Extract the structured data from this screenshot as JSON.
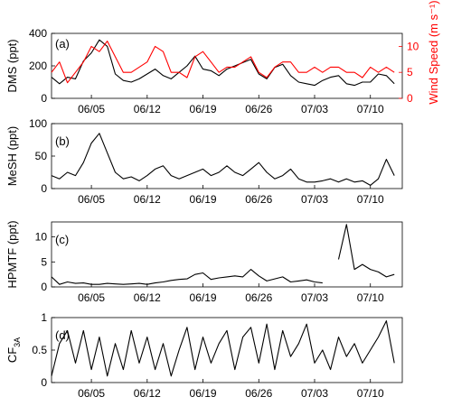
{
  "figure": {
    "x_tick_labels": [
      "06/05",
      "06/12",
      "06/19",
      "06/26",
      "07/03",
      "07/10"
    ]
  },
  "chart_data": [
    {
      "type": "line",
      "panel_label": "(a)",
      "ylabel": "DMS (ppt)",
      "ylabel_right": "Wind Speed (m s⁻¹)",
      "ylim": [
        0,
        400
      ],
      "yticks": [
        0,
        200,
        400
      ],
      "ylim_right": [
        0,
        12.5
      ],
      "yticks_right": [
        0,
        5,
        10
      ],
      "x_ticks": [
        "06/05",
        "06/12",
        "06/19",
        "06/26",
        "07/03",
        "07/10"
      ],
      "x_range_days": [
        "05/31",
        "07/15"
      ],
      "colors": {
        "DMS": "#000000",
        "Wind Speed": "#ff0000"
      },
      "series": [
        {
          "name": "DMS",
          "axis": "left",
          "x_days": [
            0,
            1,
            2,
            3,
            4,
            5,
            6,
            7,
            8,
            9,
            10,
            11,
            12,
            13,
            14,
            15,
            16,
            17,
            18,
            19,
            20,
            21,
            22,
            23,
            24,
            25,
            26,
            27,
            28,
            29,
            30,
            31,
            32,
            33,
            34,
            35,
            36,
            37,
            38,
            39,
            40,
            41,
            42,
            43
          ],
          "values": [
            130,
            90,
            130,
            120,
            230,
            280,
            360,
            320,
            150,
            110,
            100,
            120,
            150,
            180,
            140,
            120,
            160,
            200,
            260,
            180,
            170,
            140,
            180,
            200,
            220,
            240,
            150,
            120,
            190,
            210,
            140,
            100,
            90,
            80,
            110,
            130,
            140,
            90,
            80,
            100,
            100,
            150,
            140,
            90
          ]
        },
        {
          "name": "Wind Speed",
          "axis": "right",
          "x_days": [
            0,
            1,
            2,
            3,
            4,
            5,
            6,
            7,
            8,
            9,
            10,
            11,
            12,
            13,
            14,
            15,
            16,
            17,
            18,
            19,
            20,
            21,
            22,
            23,
            24,
            25,
            26,
            27,
            28,
            29,
            30,
            31,
            32,
            33,
            34,
            35,
            36,
            37,
            38,
            39,
            40,
            41,
            42,
            43
          ],
          "values": [
            5,
            7,
            3,
            5,
            7,
            10,
            9,
            11,
            8,
            5,
            5,
            6,
            7,
            10,
            9,
            5,
            5,
            4,
            8,
            9,
            7,
            5,
            6,
            6,
            7,
            8,
            5,
            4,
            6,
            7,
            7,
            5,
            5,
            6,
            5,
            6,
            6,
            5,
            5,
            4,
            6,
            5,
            6,
            5
          ]
        }
      ]
    },
    {
      "type": "line",
      "panel_label": "(b)",
      "ylabel": "MeSH (ppt)",
      "ylim": [
        0,
        100
      ],
      "yticks": [
        0,
        50,
        100
      ],
      "x_ticks": [
        "06/05",
        "06/12",
        "06/19",
        "06/26",
        "07/03",
        "07/10"
      ],
      "x_range_days": [
        "05/31",
        "07/15"
      ],
      "colors": {
        "MeSH": "#000000"
      },
      "series": [
        {
          "name": "MeSH",
          "x_days": [
            0,
            1,
            2,
            3,
            4,
            5,
            6,
            7,
            8,
            9,
            10,
            11,
            12,
            13,
            14,
            15,
            16,
            17,
            18,
            19,
            20,
            21,
            22,
            23,
            24,
            25,
            26,
            27,
            28,
            29,
            30,
            31,
            32,
            33,
            34,
            35,
            36,
            37,
            38,
            39,
            40,
            41,
            42,
            43
          ],
          "values": [
            20,
            15,
            25,
            20,
            40,
            70,
            85,
            55,
            25,
            15,
            18,
            12,
            20,
            30,
            35,
            20,
            15,
            20,
            25,
            30,
            20,
            25,
            35,
            25,
            20,
            30,
            40,
            25,
            15,
            20,
            30,
            15,
            10,
            10,
            12,
            15,
            10,
            15,
            10,
            12,
            5,
            15,
            45,
            20
          ]
        }
      ]
    },
    {
      "type": "line",
      "panel_label": "(c)",
      "ylabel": "HPMTF (ppt)",
      "ylim": [
        0,
        13
      ],
      "yticks": [
        0,
        5,
        10
      ],
      "x_ticks": [
        "06/05",
        "06/12",
        "06/19",
        "06/26",
        "07/03",
        "07/10"
      ],
      "x_range_days": [
        "05/31",
        "07/15"
      ],
      "colors": {
        "HPMTF": "#000000"
      },
      "series": [
        {
          "name": "HPMTF",
          "x_days": [
            0,
            1,
            2,
            3,
            4,
            5,
            6,
            7,
            8,
            9,
            10,
            11,
            12,
            13,
            14,
            15,
            16,
            17,
            18,
            19,
            20,
            21,
            22,
            23,
            24,
            25,
            26,
            27,
            28,
            29,
            30,
            31,
            32,
            33,
            34,
            35,
            36,
            37,
            38,
            39,
            40,
            41,
            42,
            43
          ],
          "values": [
            2,
            0.5,
            1,
            0.7,
            0.8,
            0.5,
            0.5,
            0.7,
            0.6,
            0.5,
            0.6,
            0.7,
            0.5,
            0.8,
            1.0,
            1.3,
            1.5,
            1.6,
            2.5,
            2.8,
            1.5,
            1.8,
            2.0,
            2.2,
            2.0,
            3.5,
            2.2,
            1.2,
            1.6,
            2.0,
            1.0,
            1.2,
            1.4,
            1.0,
            0.8,
            null,
            5.5,
            12.5,
            3.5,
            4.5,
            3.5,
            3.0,
            2.0,
            2.5
          ]
        }
      ]
    },
    {
      "type": "line",
      "panel_label": "(d)",
      "ylabel": "CF",
      "ylabel_sub": "3A",
      "ylim": [
        0,
        1
      ],
      "yticks": [
        0,
        0.5,
        1
      ],
      "ytick_labels": [
        "0",
        "0.5",
        "1"
      ],
      "x_ticks": [
        "06/05",
        "06/12",
        "06/19",
        "06/26",
        "07/03",
        "07/10"
      ],
      "x_range_days": [
        "05/31",
        "07/15"
      ],
      "colors": {
        "CF3A": "#000000"
      },
      "series": [
        {
          "name": "CF3A",
          "x_days": [
            0,
            1,
            2,
            3,
            4,
            5,
            6,
            7,
            8,
            9,
            10,
            11,
            12,
            13,
            14,
            15,
            16,
            17,
            18,
            19,
            20,
            21,
            22,
            23,
            24,
            25,
            26,
            27,
            28,
            29,
            30,
            31,
            32,
            33,
            34,
            35,
            36,
            37,
            38,
            39,
            40,
            41,
            42,
            43
          ],
          "values": [
            0.1,
            0.6,
            0.8,
            0.3,
            0.8,
            0.2,
            0.7,
            0.1,
            0.6,
            0.2,
            0.8,
            0.3,
            0.7,
            0.2,
            0.6,
            0.1,
            0.5,
            0.85,
            0.2,
            0.7,
            0.3,
            0.6,
            0.8,
            0.2,
            0.7,
            0.85,
            0.3,
            0.9,
            0.2,
            0.8,
            0.4,
            0.6,
            0.9,
            0.3,
            0.5,
            0.2,
            0.7,
            0.4,
            0.6,
            0.3,
            0.5,
            0.7,
            0.95,
            0.3
          ]
        }
      ]
    }
  ]
}
